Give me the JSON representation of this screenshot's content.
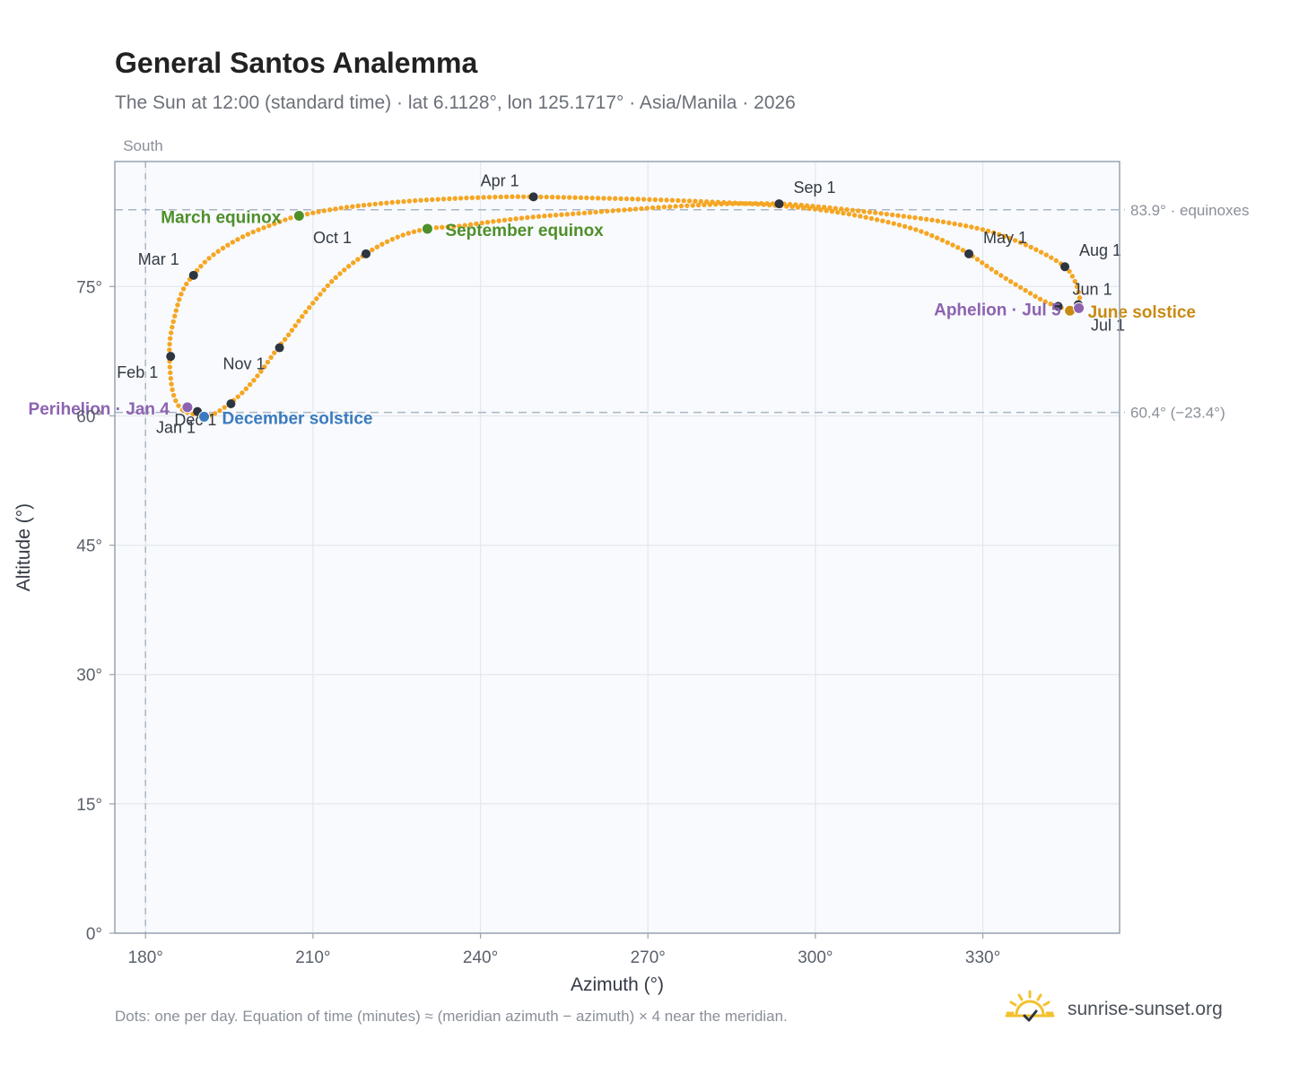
{
  "header": {
    "title": "General Santos Analemma",
    "subtitle": "The Sun at 12:00 (standard time) · lat 6.1128°, lon 125.1717° · Asia/Manila · 2026"
  },
  "footer": {
    "note": "Dots: one per day. Equation of time (minutes) ≈ (meridian azimuth − azimuth) × 4 near the meridian.",
    "brand": "sunrise-sunset.org"
  },
  "colors": {
    "curve": "#f5a623",
    "month_marker": "#2d3540",
    "equinox": "#4e8f2a",
    "december_solstice": "#3a7bbf",
    "june_solstice": "#c98a12",
    "perihelion_aphelion": "#8c63b0",
    "reference_line": "#aab6c4",
    "plot_background": "#f8fafd",
    "grid": "#e3e8ee",
    "frame": "#98a2b0"
  },
  "chart_data": {
    "type": "scatter",
    "title": "General Santos Analemma",
    "xlabel": "Azimuth (°)",
    "ylabel": "Altitude (°)",
    "xlim": [
      174.5,
      354.5
    ],
    "ylim": [
      0,
      89.5
    ],
    "xticks": [
      180,
      210,
      240,
      270,
      300,
      330
    ],
    "xtick_labels": [
      "180°",
      "210°",
      "240°",
      "270°",
      "300°",
      "330°"
    ],
    "yticks": [
      0,
      15,
      30,
      45,
      60,
      75
    ],
    "ytick_labels": [
      "0°",
      "15°",
      "30°",
      "45°",
      "60°",
      "75°"
    ],
    "grid": true,
    "meridian": {
      "azimuth": 180,
      "label": "South"
    },
    "reference_lines": [
      {
        "altitude": 83.9,
        "label": "83.9° · equinoxes"
      },
      {
        "altitude": 60.4,
        "label": "60.4° (−23.4°)"
      }
    ],
    "series": [
      {
        "points": [
          [
            189.5,
            60.1
          ],
          [
            187.1,
            60.5
          ],
          [
            185.6,
            61.5
          ],
          [
            184.7,
            63.4
          ],
          [
            184.3,
            66.5
          ],
          [
            184.4,
            68.9
          ],
          [
            185.2,
            71.5
          ],
          [
            186.5,
            74.3
          ],
          [
            188.5,
            76.3
          ],
          [
            192.0,
            78.6
          ],
          [
            197.5,
            80.8
          ],
          [
            204.0,
            82.5
          ],
          [
            207.5,
            83.2
          ],
          [
            215.0,
            84.1
          ],
          [
            225.0,
            84.8
          ],
          [
            235.0,
            85.2
          ],
          [
            244.0,
            85.4
          ],
          [
            249.5,
            85.4
          ],
          [
            258.0,
            85.3
          ],
          [
            270.0,
            85.1
          ],
          [
            282.0,
            84.8
          ],
          [
            293.0,
            84.4
          ],
          [
            302.0,
            83.8
          ],
          [
            310.0,
            82.9
          ],
          [
            318.0,
            81.6
          ],
          [
            324.0,
            80.0
          ],
          [
            327.5,
            78.8
          ],
          [
            332.5,
            76.6
          ],
          [
            337.0,
            74.8
          ],
          [
            341.0,
            73.3
          ],
          [
            343.5,
            72.7
          ],
          [
            345.6,
            72.2
          ],
          [
            346.8,
            72.4
          ],
          [
            347.4,
            73.0
          ],
          [
            347.1,
            74.5
          ],
          [
            346.2,
            76.0
          ],
          [
            344.7,
            77.3
          ],
          [
            341.0,
            78.8
          ],
          [
            336.0,
            80.3
          ],
          [
            330.0,
            81.6
          ],
          [
            322.0,
            82.6
          ],
          [
            314.0,
            83.3
          ],
          [
            306.0,
            83.9
          ],
          [
            300.0,
            84.3
          ],
          [
            293.5,
            84.6
          ],
          [
            285.0,
            84.6
          ],
          [
            275.0,
            84.3
          ],
          [
            266.0,
            83.9
          ],
          [
            258.0,
            83.5
          ],
          [
            250.0,
            83.1
          ],
          [
            243.0,
            82.6
          ],
          [
            236.0,
            82.0
          ],
          [
            230.5,
            81.7
          ],
          [
            225.0,
            80.7
          ],
          [
            219.5,
            78.8
          ],
          [
            214.0,
            76.0
          ],
          [
            209.0,
            72.3
          ],
          [
            205.5,
            69.3
          ],
          [
            203.5,
            67.7
          ],
          [
            200.5,
            65.0
          ],
          [
            197.5,
            62.8
          ],
          [
            195.0,
            61.4
          ],
          [
            192.5,
            60.3
          ],
          [
            190.5,
            59.9
          ],
          [
            189.5,
            60.1
          ]
        ]
      }
    ],
    "month_markers": [
      {
        "label": "Jan 1",
        "az": 189.3,
        "alt": 60.5
      },
      {
        "label": "Feb 1",
        "az": 184.5,
        "alt": 66.9
      },
      {
        "label": "Mar 1",
        "az": 188.6,
        "alt": 76.3
      },
      {
        "label": "Apr 1",
        "az": 249.5,
        "alt": 85.4
      },
      {
        "label": "May 1",
        "az": 327.5,
        "alt": 78.8
      },
      {
        "label": "Jun 1",
        "az": 343.5,
        "alt": 72.7
      },
      {
        "label": "Jul 1",
        "az": 347.1,
        "alt": 72.9
      },
      {
        "label": "Aug 1",
        "az": 344.7,
        "alt": 77.3
      },
      {
        "label": "Sep 1",
        "az": 293.5,
        "alt": 84.6
      },
      {
        "label": "Oct 1",
        "az": 219.5,
        "alt": 78.8
      },
      {
        "label": "Nov 1",
        "az": 204.0,
        "alt": 67.9
      },
      {
        "label": "Dec 1",
        "az": 195.3,
        "alt": 61.4
      }
    ],
    "events": [
      {
        "label": "March equinox",
        "az": 207.5,
        "alt": 83.2,
        "kind": "equinox"
      },
      {
        "label": "September equinox",
        "az": 230.5,
        "alt": 81.7,
        "kind": "equinox"
      },
      {
        "label": "December solstice",
        "az": 190.5,
        "alt": 59.9,
        "kind": "december_solstice"
      },
      {
        "label": "June solstice",
        "az": 345.6,
        "alt": 72.2,
        "kind": "june_solstice"
      },
      {
        "label": "Perihelion · Jan 4",
        "az": 187.5,
        "alt": 61.0,
        "kind": "perihelion_aphelion"
      },
      {
        "label": "Aphelion · Jul 5",
        "az": 347.2,
        "alt": 72.5,
        "kind": "perihelion_aphelion"
      }
    ]
  }
}
